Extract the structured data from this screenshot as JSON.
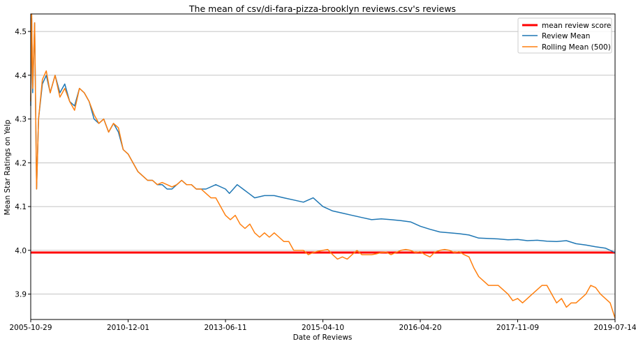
{
  "chart_data": {
    "type": "line",
    "title": "The mean of csv/di-fara-pizza-brooklyn reviews.csv's reviews",
    "xlabel": "Date of Reviews",
    "ylabel": "Mean Star Ratings on Yelp",
    "x_ticks": [
      "2005-10-29",
      "2010-12-01",
      "2013-06-11",
      "2015-04-10",
      "2016-04-20",
      "2017-11-09",
      "2019-07-14"
    ],
    "x_tick_positions": [
      0,
      1,
      2,
      3,
      4,
      5,
      6
    ],
    "y_ticks": [
      3.9,
      4.0,
      4.1,
      4.2,
      4.3,
      4.4,
      4.5
    ],
    "ylim": [
      3.842,
      4.54
    ],
    "xlim": [
      0,
      6
    ],
    "grid": "y",
    "legend_position": "top-right",
    "hline": {
      "name": "mean review score",
      "value": 3.995,
      "color": "#ff0000"
    },
    "series": [
      {
        "name": "Review Mean",
        "color": "#1f77b4",
        "x": [
          0.0,
          0.01,
          0.02,
          0.04,
          0.06,
          0.08,
          0.12,
          0.16,
          0.2,
          0.25,
          0.3,
          0.35,
          0.4,
          0.45,
          0.5,
          0.55,
          0.6,
          0.65,
          0.7,
          0.75,
          0.8,
          0.85,
          0.9,
          0.95,
          1.0,
          1.05,
          1.1,
          1.15,
          1.2,
          1.25,
          1.3,
          1.35,
          1.4,
          1.45,
          1.5,
          1.55,
          1.6,
          1.65,
          1.7,
          1.8,
          1.9,
          2.0,
          2.04,
          2.08,
          2.12,
          2.18,
          2.24,
          2.3,
          2.4,
          2.5,
          2.6,
          2.7,
          2.8,
          2.9,
          3.0,
          3.1,
          3.2,
          3.3,
          3.4,
          3.5,
          3.6,
          3.7,
          3.8,
          3.9,
          4.0,
          4.1,
          4.2,
          4.3,
          4.4,
          4.5,
          4.6,
          4.7,
          4.8,
          4.9,
          5.0,
          5.1,
          5.2,
          5.3,
          5.4,
          5.5,
          5.6,
          5.7,
          5.8,
          5.9,
          6.0
        ],
        "y": [
          4.33,
          4.53,
          4.36,
          4.52,
          4.14,
          4.3,
          4.38,
          4.4,
          4.36,
          4.4,
          4.36,
          4.38,
          4.34,
          4.33,
          4.37,
          4.36,
          4.34,
          4.3,
          4.29,
          4.3,
          4.27,
          4.29,
          4.27,
          4.23,
          4.22,
          4.2,
          4.18,
          4.17,
          4.16,
          4.16,
          4.15,
          4.15,
          4.14,
          4.14,
          4.15,
          4.16,
          4.15,
          4.15,
          4.14,
          4.14,
          4.15,
          4.14,
          4.13,
          4.14,
          4.15,
          4.14,
          4.13,
          4.12,
          4.125,
          4.125,
          4.12,
          4.115,
          4.11,
          4.12,
          4.1,
          4.09,
          4.085,
          4.08,
          4.075,
          4.07,
          4.072,
          4.07,
          4.068,
          4.065,
          4.055,
          4.048,
          4.042,
          4.04,
          4.038,
          4.035,
          4.028,
          4.027,
          4.026,
          4.024,
          4.025,
          4.022,
          4.023,
          4.021,
          4.02,
          4.022,
          4.015,
          4.012,
          4.008,
          4.005,
          3.995
        ]
      },
      {
        "name": "Rolling Mean (500)",
        "color": "#ff7f0e",
        "x": [
          0.0,
          0.01,
          0.02,
          0.04,
          0.06,
          0.08,
          0.12,
          0.16,
          0.2,
          0.25,
          0.3,
          0.35,
          0.4,
          0.45,
          0.5,
          0.55,
          0.6,
          0.65,
          0.7,
          0.75,
          0.8,
          0.85,
          0.9,
          0.95,
          1.0,
          1.05,
          1.1,
          1.15,
          1.2,
          1.25,
          1.3,
          1.35,
          1.4,
          1.45,
          1.5,
          1.55,
          1.6,
          1.65,
          1.7,
          1.75,
          1.8,
          1.85,
          1.9,
          1.95,
          2.0,
          2.05,
          2.1,
          2.15,
          2.2,
          2.25,
          2.3,
          2.35,
          2.4,
          2.45,
          2.5,
          2.55,
          2.6,
          2.65,
          2.7,
          2.75,
          2.8,
          2.85,
          2.9,
          2.95,
          3.0,
          3.05,
          3.1,
          3.15,
          3.2,
          3.25,
          3.3,
          3.35,
          3.4,
          3.45,
          3.5,
          3.55,
          3.6,
          3.65,
          3.7,
          3.75,
          3.8,
          3.85,
          3.9,
          3.95,
          4.0,
          4.05,
          4.1,
          4.15,
          4.2,
          4.25,
          4.3,
          4.35,
          4.4,
          4.45,
          4.5,
          4.55,
          4.6,
          4.65,
          4.7,
          4.75,
          4.8,
          4.85,
          4.9,
          4.95,
          5.0,
          5.05,
          5.1,
          5.15,
          5.2,
          5.25,
          5.3,
          5.35,
          5.4,
          5.45,
          5.5,
          5.55,
          5.6,
          5.65,
          5.7,
          5.75,
          5.8,
          5.85,
          5.9,
          5.95,
          6.0
        ],
        "y": [
          4.34,
          4.54,
          4.37,
          4.52,
          4.14,
          4.3,
          4.39,
          4.41,
          4.36,
          4.4,
          4.35,
          4.37,
          4.34,
          4.32,
          4.37,
          4.36,
          4.34,
          4.31,
          4.29,
          4.3,
          4.27,
          4.29,
          4.28,
          4.23,
          4.22,
          4.2,
          4.18,
          4.17,
          4.16,
          4.16,
          4.15,
          4.155,
          4.15,
          4.145,
          4.15,
          4.16,
          4.15,
          4.15,
          4.14,
          4.14,
          4.13,
          4.12,
          4.12,
          4.1,
          4.08,
          4.07,
          4.08,
          4.06,
          4.05,
          4.06,
          4.04,
          4.03,
          4.04,
          4.03,
          4.04,
          4.03,
          4.02,
          4.02,
          4.0,
          4.0,
          4.0,
          3.99,
          3.995,
          3.998,
          4.0,
          4.002,
          3.99,
          3.98,
          3.985,
          3.98,
          3.99,
          4.0,
          3.99,
          3.99,
          3.99,
          3.992,
          3.995,
          3.996,
          3.99,
          3.995,
          4.0,
          4.002,
          4.0,
          3.995,
          3.997,
          3.99,
          3.985,
          3.996,
          4.0,
          4.002,
          4.0,
          3.995,
          3.997,
          3.99,
          3.985,
          3.96,
          3.94,
          3.93,
          3.92,
          3.92,
          3.92,
          3.91,
          3.9,
          3.885,
          3.89,
          3.88,
          3.89,
          3.9,
          3.91,
          3.92,
          3.92,
          3.9,
          3.88,
          3.89,
          3.87,
          3.88,
          3.88,
          3.89,
          3.9,
          3.92,
          3.915,
          3.9,
          3.89,
          3.88,
          3.845
        ]
      }
    ]
  }
}
